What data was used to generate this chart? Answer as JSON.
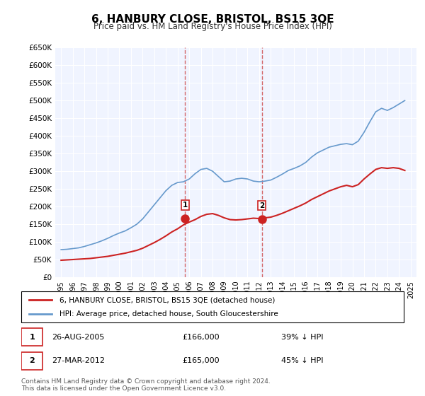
{
  "title": "6, HANBURY CLOSE, BRISTOL, BS15 3QE",
  "subtitle": "Price paid vs. HM Land Registry's House Price Index (HPI)",
  "ylabel": "",
  "xlabel": "",
  "ylim": [
    0,
    650000
  ],
  "yticks": [
    0,
    50000,
    100000,
    150000,
    200000,
    250000,
    300000,
    350000,
    400000,
    450000,
    500000,
    550000,
    600000,
    650000
  ],
  "ytick_labels": [
    "£0",
    "£50K",
    "£100K",
    "£150K",
    "£200K",
    "£250K",
    "£300K",
    "£350K",
    "£400K",
    "£450K",
    "£500K",
    "£550K",
    "£600K",
    "£650K"
  ],
  "background_color": "#f0f4ff",
  "plot_bg_color": "#f0f4ff",
  "hpi_color": "#6699cc",
  "price_color": "#cc2222",
  "vline_color": "#cc4444",
  "marker_box_color": "#cc2222",
  "transaction1_x": 2005.65,
  "transaction1_y": 166000,
  "transaction1_label": "1",
  "transaction1_date": "26-AUG-2005",
  "transaction1_price": "£166,000",
  "transaction1_hpi": "39% ↓ HPI",
  "transaction2_x": 2012.23,
  "transaction2_y": 165000,
  "transaction2_label": "2",
  "transaction2_date": "27-MAR-2012",
  "transaction2_price": "£165,000",
  "transaction2_hpi": "45% ↓ HPI",
  "legend_line1": "6, HANBURY CLOSE, BRISTOL, BS15 3QE (detached house)",
  "legend_line2": "HPI: Average price, detached house, South Gloucestershire",
  "footnote": "Contains HM Land Registry data © Crown copyright and database right 2024.\nThis data is licensed under the Open Government Licence v3.0.",
  "hpi_x": [
    1995,
    1995.5,
    1996,
    1996.5,
    1997,
    1997.5,
    1998,
    1998.5,
    1999,
    1999.5,
    2000,
    2000.5,
    2001,
    2001.5,
    2002,
    2002.5,
    2003,
    2003.5,
    2004,
    2004.5,
    2005,
    2005.5,
    2006,
    2006.5,
    2007,
    2007.5,
    2008,
    2008.5,
    2009,
    2009.5,
    2010,
    2010.5,
    2011,
    2011.5,
    2012,
    2012.5,
    2013,
    2013.5,
    2014,
    2014.5,
    2015,
    2015.5,
    2016,
    2016.5,
    2017,
    2017.5,
    2018,
    2018.5,
    2019,
    2019.5,
    2020,
    2020.5,
    2021,
    2021.5,
    2022,
    2022.5,
    2023,
    2023.5,
    2024,
    2024.5
  ],
  "hpi_y": [
    78000,
    79000,
    81000,
    83000,
    87000,
    92000,
    97000,
    103000,
    110000,
    118000,
    125000,
    131000,
    140000,
    150000,
    165000,
    185000,
    205000,
    225000,
    245000,
    260000,
    268000,
    270000,
    278000,
    293000,
    305000,
    308000,
    300000,
    285000,
    270000,
    272000,
    278000,
    280000,
    278000,
    272000,
    270000,
    272000,
    275000,
    283000,
    292000,
    302000,
    308000,
    315000,
    325000,
    340000,
    352000,
    360000,
    368000,
    372000,
    376000,
    378000,
    375000,
    385000,
    410000,
    440000,
    468000,
    478000,
    472000,
    480000,
    490000,
    500000
  ],
  "price_x": [
    1995,
    1995.5,
    1996,
    1996.5,
    1997,
    1997.5,
    1998,
    1998.5,
    1999,
    1999.5,
    2000,
    2000.5,
    2001,
    2001.5,
    2002,
    2002.5,
    2003,
    2003.5,
    2004,
    2004.5,
    2005,
    2005.5,
    2006,
    2006.5,
    2007,
    2007.5,
    2008,
    2008.5,
    2009,
    2009.5,
    2010,
    2010.5,
    2011,
    2011.5,
    2012,
    2012.5,
    2013,
    2013.5,
    2014,
    2014.5,
    2015,
    2015.5,
    2016,
    2016.5,
    2017,
    2017.5,
    2018,
    2018.5,
    2019,
    2019.5,
    2020,
    2020.5,
    2021,
    2021.5,
    2022,
    2022.5,
    2023,
    2023.5,
    2024,
    2024.5
  ],
  "price_y": [
    48000,
    49000,
    50000,
    51000,
    52000,
    53000,
    55000,
    57000,
    59000,
    62000,
    65000,
    68000,
    72000,
    76000,
    82000,
    90000,
    98000,
    107000,
    117000,
    128000,
    137000,
    148000,
    156000,
    163000,
    172000,
    178000,
    180000,
    175000,
    168000,
    163000,
    162000,
    163000,
    165000,
    167000,
    166000,
    168000,
    170000,
    175000,
    181000,
    188000,
    195000,
    202000,
    210000,
    220000,
    228000,
    236000,
    244000,
    250000,
    256000,
    260000,
    256000,
    262000,
    278000,
    292000,
    305000,
    310000,
    308000,
    310000,
    308000,
    302000
  ],
  "xtick_years": [
    1995,
    1996,
    1997,
    1998,
    1999,
    2000,
    2001,
    2002,
    2003,
    2004,
    2005,
    2006,
    2007,
    2008,
    2009,
    2010,
    2011,
    2012,
    2013,
    2014,
    2015,
    2016,
    2017,
    2018,
    2019,
    2020,
    2021,
    2022,
    2023,
    2024,
    2025
  ]
}
